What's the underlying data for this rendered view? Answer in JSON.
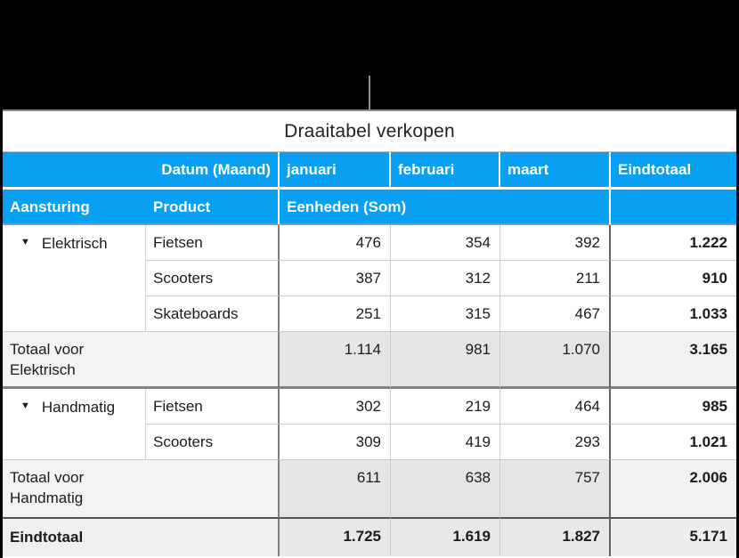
{
  "colors": {
    "header_blue": "#0aa0f2",
    "subtotal_label_bg": "#f3f3f1",
    "subtotal_value_bg": "#e5e5e3",
    "grand_row_bg": "#e8e8e6",
    "callout_gray": "#8e8e8e"
  },
  "icons": {
    "disclosure": "▼"
  },
  "table": {
    "title": "Draaitabel verkopen",
    "headers": {
      "datum": "Datum (Maand)",
      "months": [
        "januari",
        "februari",
        "maart"
      ],
      "eindtotaal": "Eindtotaal",
      "aansturing": "Aansturing",
      "product": "Product",
      "eenheden": "Eenheden (Som)"
    },
    "body": {
      "group1": {
        "label": "Elektrisch",
        "rows": [
          {
            "product": "Fietsen",
            "jan": "476",
            "feb": "354",
            "mrt": "392",
            "tot": "1.222"
          },
          {
            "product": "Scooters",
            "jan": "387",
            "feb": "312",
            "mrt": "211",
            "tot": "910"
          },
          {
            "product": "Skateboards",
            "jan": "251",
            "feb": "315",
            "mrt": "467",
            "tot": "1.033"
          }
        ],
        "total": {
          "label": "Totaal voor Elektrisch",
          "jan": "1.114",
          "feb": "981",
          "mrt": "1.070",
          "tot": "3.165"
        }
      },
      "group2": {
        "label": "Handmatig",
        "rows": [
          {
            "product": "Fietsen",
            "jan": "302",
            "feb": "219",
            "mrt": "464",
            "tot": "985"
          },
          {
            "product": "Scooters",
            "jan": "309",
            "feb": "419",
            "mrt": "293",
            "tot": "1.021"
          }
        ],
        "total": {
          "label": "Totaal voor Handmatig",
          "jan": "611",
          "feb": "638",
          "mrt": "757",
          "tot": "2.006"
        }
      },
      "grand": {
        "label": "Eindtotaal",
        "jan": "1.725",
        "feb": "1.619",
        "mrt": "1.827",
        "tot": "5.171"
      }
    }
  }
}
